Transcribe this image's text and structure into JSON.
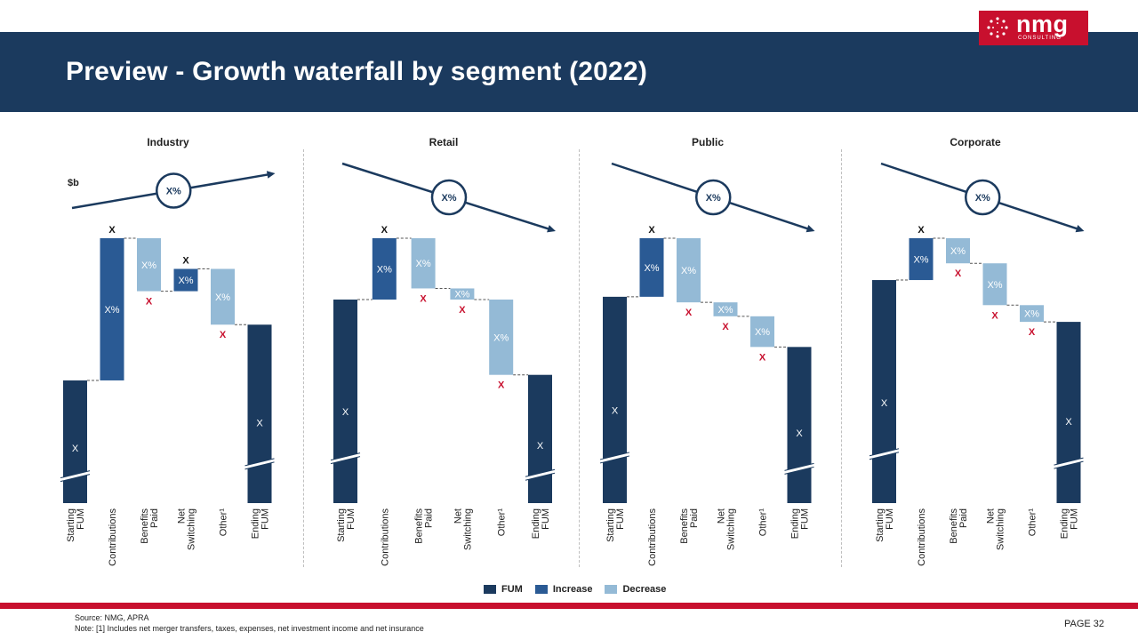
{
  "logo": {
    "word": "nmg",
    "sub": "CONSULTING"
  },
  "title": "Preview - Growth waterfall by segment (2022)",
  "unit_label": "$b",
  "legend": [
    {
      "label": "FUM",
      "color": "#1b3a5e"
    },
    {
      "label": "Increase",
      "color": "#2a5a94"
    },
    {
      "label": "Decrease",
      "color": "#94bad6"
    }
  ],
  "source": "Source: NMG,  APRA",
  "note": "Note: [1] Includes net merger transfers, taxes, expenses, net investment income and net insurance",
  "page": "PAGE  32",
  "colors": {
    "fum": "#1b3a5e",
    "increase": "#2a5a94",
    "decrease": "#94bad6",
    "decrease_label": "#c8102e",
    "trend": "#1b3a5e"
  },
  "chart_data": [
    {
      "type": "waterfall",
      "title": "Industry",
      "trend": {
        "direction": "up",
        "label": "X%"
      },
      "categories": [
        "Starting\nFUM",
        "Contributions",
        "Benefits\nPaid",
        "Net\nSwitching",
        "Other¹",
        "Ending\nFUM"
      ],
      "steps": [
        {
          "kind": "fum",
          "base": 0,
          "top": 44,
          "label": "X",
          "axis_break": true
        },
        {
          "kind": "increase",
          "base": 44,
          "top": 95,
          "label": "X%",
          "above": "X"
        },
        {
          "kind": "decrease",
          "base": 76,
          "top": 95,
          "label": "X%",
          "below": "X"
        },
        {
          "kind": "increase",
          "base": 76,
          "top": 84,
          "label": "X%",
          "above": "X"
        },
        {
          "kind": "decrease",
          "base": 64,
          "top": 84,
          "label": "X%",
          "below": "X"
        },
        {
          "kind": "fum",
          "base": 0,
          "top": 64,
          "label": "X",
          "axis_break": true
        }
      ],
      "ylim": [
        0,
        100
      ]
    },
    {
      "type": "waterfall",
      "title": "Retail",
      "trend": {
        "direction": "down",
        "label": "X%"
      },
      "categories": [
        "Starting\nFUM",
        "Contributions",
        "Benefits\nPaid",
        "Net\nSwitching",
        "Other¹",
        "Ending\nFUM"
      ],
      "steps": [
        {
          "kind": "fum",
          "base": 0,
          "top": 73,
          "label": "X",
          "axis_break": true
        },
        {
          "kind": "increase",
          "base": 73,
          "top": 95,
          "label": "X%",
          "above": "X"
        },
        {
          "kind": "decrease",
          "base": 77,
          "top": 95,
          "label": "X%",
          "below": "X"
        },
        {
          "kind": "decrease",
          "base": 73,
          "top": 77,
          "label": "X%",
          "below": "X"
        },
        {
          "kind": "decrease",
          "base": 46,
          "top": 73,
          "label": "X%",
          "below": "X"
        },
        {
          "kind": "fum",
          "base": 0,
          "top": 46,
          "label": "X",
          "axis_break": true
        }
      ],
      "ylim": [
        0,
        100
      ]
    },
    {
      "type": "waterfall",
      "title": "Public",
      "trend": {
        "direction": "down",
        "label": "X%"
      },
      "categories": [
        "Starting\nFUM",
        "Contributions",
        "Benefits\nPaid",
        "Net\nSwitching",
        "Other¹",
        "Ending\nFUM"
      ],
      "steps": [
        {
          "kind": "fum",
          "base": 0,
          "top": 74,
          "label": "X",
          "axis_break": true
        },
        {
          "kind": "increase",
          "base": 74,
          "top": 95,
          "label": "X%",
          "above": "X"
        },
        {
          "kind": "decrease",
          "base": 72,
          "top": 95,
          "label": "X%",
          "below": "X"
        },
        {
          "kind": "decrease",
          "base": 67,
          "top": 72,
          "label": "X%",
          "below": "X"
        },
        {
          "kind": "decrease",
          "base": 56,
          "top": 67,
          "label": "X%",
          "below": "X"
        },
        {
          "kind": "fum",
          "base": 0,
          "top": 56,
          "label": "X",
          "axis_break": true
        }
      ],
      "ylim": [
        0,
        100
      ]
    },
    {
      "type": "waterfall",
      "title": "Corporate",
      "trend": {
        "direction": "down",
        "label": "X%"
      },
      "categories": [
        "Starting\nFUM",
        "Contributions",
        "Benefits\nPaid",
        "Net\nSwitching",
        "Other¹",
        "Ending\nFUM"
      ],
      "steps": [
        {
          "kind": "fum",
          "base": 0,
          "top": 80,
          "label": "X",
          "axis_break": true
        },
        {
          "kind": "increase",
          "base": 80,
          "top": 95,
          "label": "X%",
          "above": "X"
        },
        {
          "kind": "decrease",
          "base": 86,
          "top": 95,
          "label": "X%",
          "below": "X"
        },
        {
          "kind": "decrease",
          "base": 71,
          "top": 86,
          "label": "X%",
          "below": "X"
        },
        {
          "kind": "decrease",
          "base": 65,
          "top": 71,
          "label": "X%",
          "below": "X"
        },
        {
          "kind": "fum",
          "base": 0,
          "top": 65,
          "label": "X",
          "axis_break": true
        }
      ],
      "ylim": [
        0,
        100
      ]
    }
  ]
}
